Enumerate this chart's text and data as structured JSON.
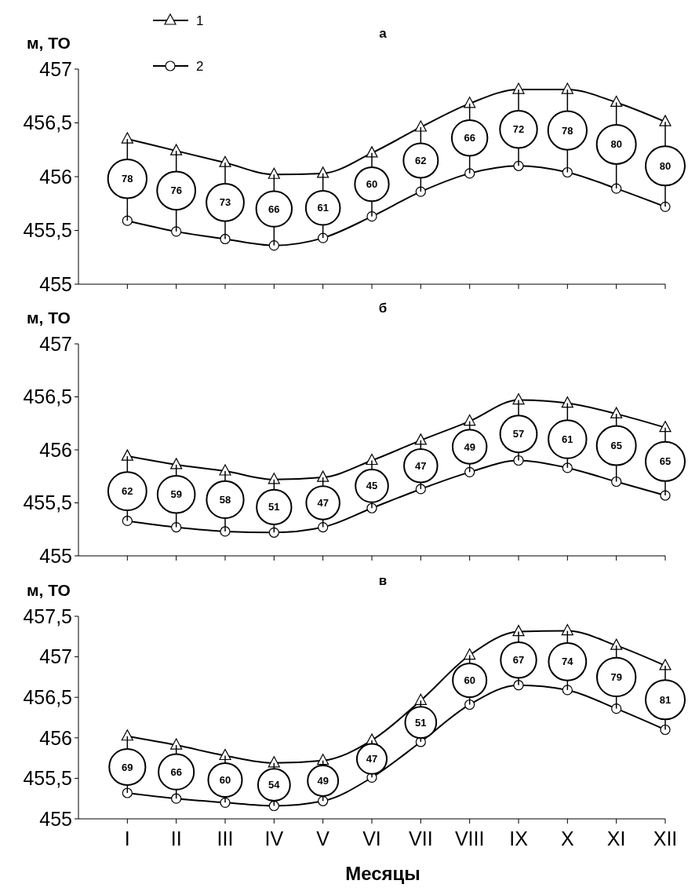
{
  "chart_data": [
    {
      "type": "line",
      "title": "а",
      "ylabel": "м, ТО",
      "categories": [
        "I",
        "II",
        "III",
        "IV",
        "V",
        "VI",
        "VII",
        "VIII",
        "IX",
        "X",
        "XI",
        "XII"
      ],
      "ylim": [
        455,
        457
      ],
      "yticks": [
        455,
        {
          "value": 455.5,
          "label": "455,5"
        },
        456,
        {
          "value": 456.5,
          "label": "456,5"
        },
        457
      ],
      "grid": false,
      "legend": "top left",
      "tick_labels": "y",
      "series": [
        {
          "name": "1",
          "color": "#000000",
          "marker": "triangle",
          "values": [
            456.35,
            456.24,
            456.13,
            456.02,
            456.03,
            456.22,
            456.46,
            456.68,
            456.81,
            456.81,
            456.69,
            456.51
          ]
        },
        {
          "name": "2",
          "color": "#000000",
          "marker": "circle",
          "values": [
            455.59,
            455.49,
            455.42,
            455.36,
            455.43,
            455.63,
            455.86,
            456.03,
            456.1,
            456.04,
            455.89,
            455.72
          ]
        },
        {
          "type": "bubble",
          "color": "#000000",
          "values": [
            455.98,
            455.87,
            455.76,
            455.7,
            455.71,
            455.93,
            456.15,
            456.36,
            456.44,
            456.43,
            456.3,
            456.1
          ],
          "sizes": [
            0.975,
            0.95,
            0.9125,
            0.825,
            0.7625,
            0.75,
            0.775,
            0.825,
            0.9,
            0.975,
            1,
            1
          ],
          "errors": [
            [
              455.59,
              456.35
            ],
            [
              455.49,
              456.24
            ],
            [
              455.42,
              456.13
            ],
            [
              455.36,
              456.02
            ],
            [
              455.43,
              456.03
            ],
            [
              455.63,
              456.22
            ],
            [
              455.86,
              456.46
            ],
            [
              456.03,
              456.68
            ],
            [
              456.1,
              456.81
            ],
            [
              456.04,
              456.81
            ],
            [
              455.89,
              456.69
            ],
            [
              455.72,
              456.51
            ]
          ]
        }
      ],
      "annotations": [
        {
          "text": "78",
          "x": "I",
          "y": 455.98
        },
        {
          "text": "76",
          "x": "II",
          "y": 455.87
        },
        {
          "text": "73",
          "x": "III",
          "y": 455.76
        },
        {
          "text": "66",
          "x": "IV",
          "y": 455.7
        },
        {
          "text": "61",
          "x": "V",
          "y": 455.71
        },
        {
          "text": "60",
          "x": "VI",
          "y": 455.93
        },
        {
          "text": "62",
          "x": "VII",
          "y": 456.15
        },
        {
          "text": "66",
          "x": "VIII",
          "y": 456.36
        },
        {
          "text": "72",
          "x": "IX",
          "y": 456.44
        },
        {
          "text": "78",
          "x": "X",
          "y": 456.43
        },
        {
          "text": "80",
          "x": "XI",
          "y": 456.3
        },
        {
          "text": "80",
          "x": "XII",
          "y": 456.1
        }
      ]
    },
    {
      "type": "line",
      "title": "б",
      "ylabel": "м, ТО",
      "categories": [
        "I",
        "II",
        "III",
        "IV",
        "V",
        "VI",
        "VII",
        "VIII",
        "IX",
        "X",
        "XI",
        "XII"
      ],
      "ylim": [
        455,
        457
      ],
      "yticks": [
        455,
        {
          "value": 455.5,
          "label": "455,5"
        },
        456,
        {
          "value": 456.5,
          "label": "456,5"
        },
        457
      ],
      "grid": false,
      "tick_labels": "y",
      "series": [
        {
          "name": "1",
          "color": "#000000",
          "marker": "triangle",
          "values": [
            455.94,
            455.86,
            455.8,
            455.72,
            455.74,
            455.9,
            456.09,
            456.27,
            456.47,
            456.44,
            456.34,
            456.21
          ]
        },
        {
          "name": "2",
          "color": "#000000",
          "marker": "circle",
          "values": [
            455.33,
            455.27,
            455.23,
            455.22,
            455.27,
            455.45,
            455.63,
            455.79,
            455.9,
            455.83,
            455.7,
            455.57
          ]
        },
        {
          "type": "bubble",
          "color": "#000000",
          "values": [
            455.61,
            455.58,
            455.53,
            455.46,
            455.5,
            455.66,
            455.85,
            456.03,
            456.15,
            456.1,
            456.04,
            455.89
          ],
          "sizes": [
            0.954,
            0.908,
            0.892,
            0.785,
            0.723,
            0.692,
            0.723,
            0.754,
            0.877,
            0.938,
            1,
            1
          ],
          "errors": [
            [
              455.33,
              455.94
            ],
            [
              455.27,
              455.86
            ],
            [
              455.23,
              455.8
            ],
            [
              455.22,
              455.72
            ],
            [
              455.27,
              455.74
            ],
            [
              455.45,
              455.9
            ],
            [
              455.63,
              456.09
            ],
            [
              455.79,
              456.27
            ],
            [
              455.9,
              456.47
            ],
            [
              455.83,
              456.44
            ],
            [
              455.7,
              456.34
            ],
            [
              455.57,
              456.21
            ]
          ]
        }
      ],
      "annotations": [
        {
          "text": "62",
          "x": "I",
          "y": 455.61
        },
        {
          "text": "59",
          "x": "II",
          "y": 455.58
        },
        {
          "text": "58",
          "x": "III",
          "y": 455.53
        },
        {
          "text": "51",
          "x": "IV",
          "y": 455.46
        },
        {
          "text": "47",
          "x": "V",
          "y": 455.5
        },
        {
          "text": "45",
          "x": "VI",
          "y": 455.66
        },
        {
          "text": "47",
          "x": "VII",
          "y": 455.85
        },
        {
          "text": "49",
          "x": "VIII",
          "y": 456.03
        },
        {
          "text": "57",
          "x": "IX",
          "y": 456.15
        },
        {
          "text": "61",
          "x": "X",
          "y": 456.1
        },
        {
          "text": "65",
          "x": "XI",
          "y": 456.04
        },
        {
          "text": "65",
          "x": "XII",
          "y": 455.89
        }
      ]
    },
    {
      "type": "line",
      "title": "в",
      "ylabel": "м, ТО",
      "xlabel": "Месяцы",
      "categories": [
        "I",
        "II",
        "III",
        "IV",
        "V",
        "VI",
        "VII",
        "VIII",
        "IX",
        "X",
        "XI",
        "XII"
      ],
      "ylim": [
        455,
        457.5
      ],
      "yticks": [
        455,
        {
          "value": 455.5,
          "label": "455,5"
        },
        456,
        {
          "value": 456.5,
          "label": "456,5"
        },
        457,
        {
          "value": 457.5,
          "label": "457,5"
        }
      ],
      "grid": false,
      "series": [
        {
          "name": "1",
          "color": "#000000",
          "marker": "triangle",
          "values": [
            456.02,
            455.91,
            455.78,
            455.69,
            455.72,
            455.97,
            456.46,
            457.02,
            457.31,
            457.32,
            457.14,
            456.89
          ]
        },
        {
          "name": "2",
          "color": "#000000",
          "marker": "circle",
          "values": [
            455.32,
            455.25,
            455.2,
            455.16,
            455.22,
            455.51,
            455.95,
            456.41,
            456.65,
            456.59,
            456.36,
            456.1
          ]
        },
        {
          "type": "bubble",
          "color": "#000000",
          "values": [
            455.64,
            455.58,
            455.48,
            455.42,
            455.47,
            455.74,
            456.19,
            456.71,
            456.96,
            456.94,
            456.75,
            456.47
          ],
          "sizes": [
            0.852,
            0.815,
            0.741,
            0.667,
            0.605,
            0.58,
            0.63,
            0.741,
            0.827,
            0.914,
            0.975,
            1
          ],
          "errors": [
            [
              455.32,
              456.02
            ],
            [
              455.25,
              455.91
            ],
            [
              455.2,
              455.78
            ],
            [
              455.16,
              455.69
            ],
            [
              455.22,
              455.72
            ],
            [
              455.51,
              455.97
            ],
            [
              455.95,
              456.46
            ],
            [
              456.41,
              457.02
            ],
            [
              456.65,
              457.31
            ],
            [
              456.59,
              457.32
            ],
            [
              456.36,
              457.14
            ],
            [
              456.1,
              456.89
            ]
          ]
        }
      ],
      "annotations": [
        {
          "text": "69",
          "x": "I",
          "y": 455.64
        },
        {
          "text": "66",
          "x": "II",
          "y": 455.58
        },
        {
          "text": "60",
          "x": "III",
          "y": 455.48
        },
        {
          "text": "54",
          "x": "IV",
          "y": 455.42
        },
        {
          "text": "49",
          "x": "V",
          "y": 455.47
        },
        {
          "text": "47",
          "x": "VI",
          "y": 455.74
        },
        {
          "text": "51",
          "x": "VII",
          "y": 456.19
        },
        {
          "text": "60",
          "x": "VIII",
          "y": 456.71
        },
        {
          "text": "67",
          "x": "IX",
          "y": 456.96
        },
        {
          "text": "74",
          "x": "X",
          "y": 456.94
        },
        {
          "text": "79",
          "x": "XI",
          "y": 456.75
        },
        {
          "text": "81",
          "x": "XII",
          "y": 456.47
        }
      ]
    }
  ]
}
